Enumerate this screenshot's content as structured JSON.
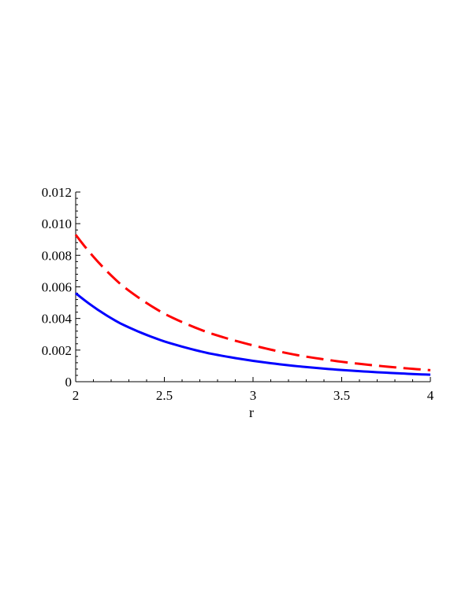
{
  "chart_data": {
    "type": "line",
    "title": "",
    "xlabel": "r",
    "ylabel": "",
    "xlim": [
      2,
      4
    ],
    "ylim": [
      0,
      0.012
    ],
    "x_ticks": [
      2,
      2.5,
      3,
      3.5,
      4
    ],
    "x_tick_labels": [
      "2",
      "2.5",
      "3",
      "3.5",
      "4"
    ],
    "y_ticks": [
      0,
      0.002,
      0.004,
      0.006,
      0.008,
      0.01,
      0.012
    ],
    "y_tick_labels": [
      "0",
      "0.002",
      "0.004",
      "0.006",
      "0.008",
      "0.010",
      "0.012"
    ],
    "grid": false,
    "legend": false,
    "series": [
      {
        "color": "#ff0000",
        "style": "dashed",
        "x": [
          2.0,
          2.25,
          2.5,
          2.75,
          3.0,
          3.25,
          3.5,
          3.75,
          4.0
        ],
        "values": [
          0.0093,
          0.0062,
          0.0043,
          0.0031,
          0.0023,
          0.00168,
          0.00126,
          0.00096,
          0.00073
        ]
      },
      {
        "color": "#0000ff",
        "style": "solid",
        "x": [
          2.0,
          2.25,
          2.5,
          2.75,
          3.0,
          3.25,
          3.5,
          3.75,
          4.0
        ],
        "values": [
          0.0056,
          0.0037,
          0.00255,
          0.0018,
          0.00132,
          0.00098,
          0.00074,
          0.00057,
          0.00044
        ]
      }
    ]
  }
}
